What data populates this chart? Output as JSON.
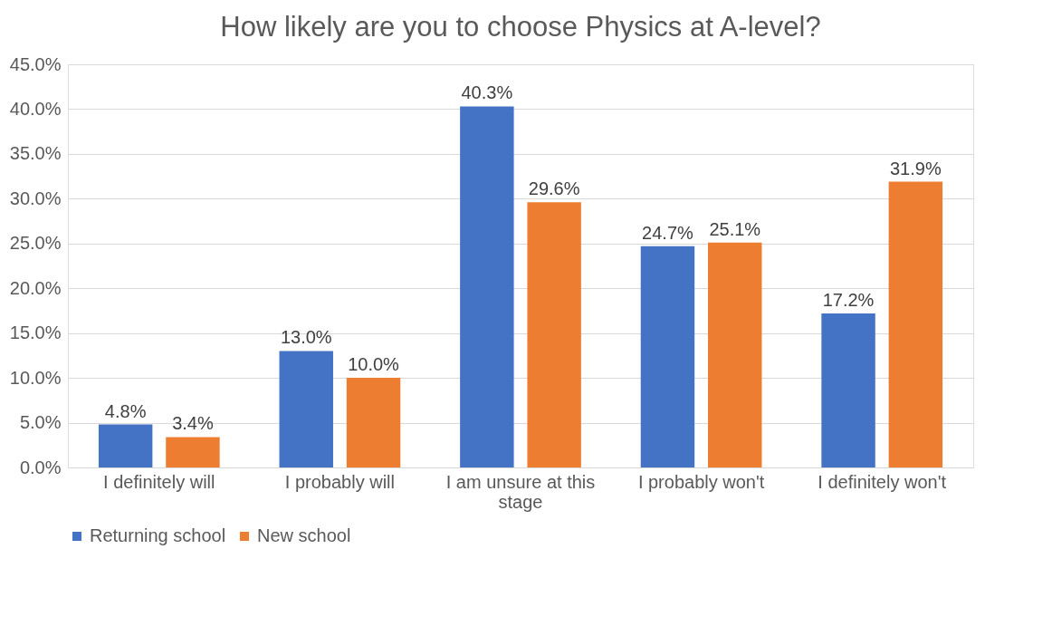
{
  "chart_data": {
    "type": "bar",
    "title": "How likely are you to choose Physics at A-level?",
    "categories": [
      "I definitely will",
      "I probably will",
      "I am unsure at this stage",
      "I probably won't",
      "I definitely won't"
    ],
    "series": [
      {
        "name": "Returning school",
        "color": "#4472c4",
        "values": [
          4.8,
          13.0,
          40.3,
          24.7,
          17.2
        ],
        "value_labels": [
          "4.8%",
          "13.0%",
          "40.3%",
          "24.7%",
          "17.2%"
        ]
      },
      {
        "name": "New school",
        "color": "#ed7d31",
        "values": [
          3.4,
          10.0,
          29.6,
          25.1,
          31.9
        ],
        "value_labels": [
          "3.4%",
          "10.0%",
          "29.6%",
          "25.1%",
          "31.9%"
        ]
      }
    ],
    "ylim": [
      0,
      45
    ],
    "yticks": [
      {
        "value": 0,
        "label": "0.0%"
      },
      {
        "value": 5,
        "label": "5.0%"
      },
      {
        "value": 10,
        "label": "10.0%"
      },
      {
        "value": 15,
        "label": "15.0%"
      },
      {
        "value": 20,
        "label": "20.0%"
      },
      {
        "value": 25,
        "label": "25.0%"
      },
      {
        "value": 30,
        "label": "30.0%"
      },
      {
        "value": 35,
        "label": "35.0%"
      },
      {
        "value": 40,
        "label": "40.0%"
      },
      {
        "value": 45,
        "label": "45.0%"
      }
    ],
    "grid": "y",
    "legend": "bottom"
  }
}
